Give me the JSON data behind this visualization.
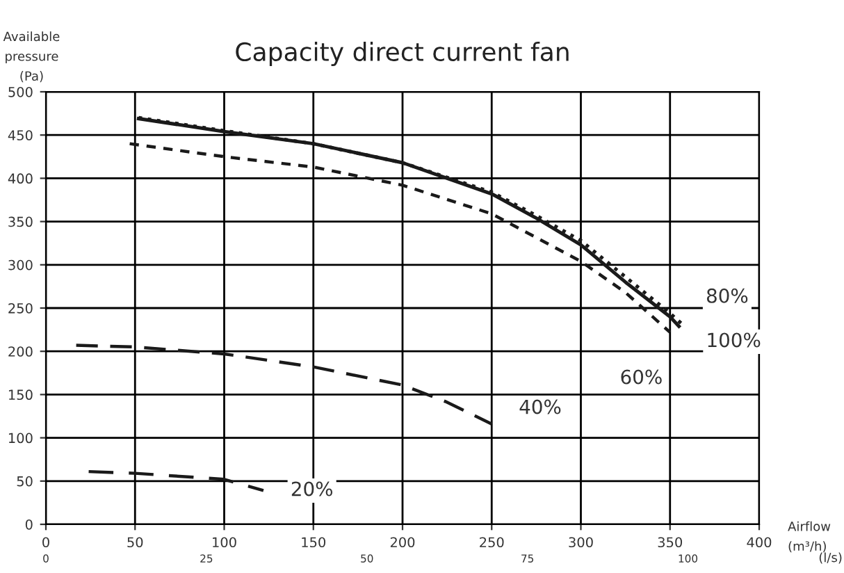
{
  "chart_data": {
    "type": "line",
    "title": "Capacity direct current fan",
    "xlabel": "Airflow\n(m³/h)",
    "x2label": "(l/s)",
    "ylabel": "Available\npressure\n(Pa)",
    "xlim": [
      0,
      400
    ],
    "xticks": [
      0,
      50,
      100,
      150,
      200,
      250,
      300,
      350,
      400
    ],
    "ylim": [
      0,
      500
    ],
    "yticks": [
      0,
      50,
      100,
      150,
      200,
      250,
      300,
      350,
      400,
      450,
      500
    ],
    "x2lim": [
      0,
      111.1
    ],
    "x2ticks": [
      0,
      25,
      50,
      75,
      100
    ],
    "grid": true,
    "legend": false,
    "marker": "none",
    "series": [
      {
        "name": "100%",
        "color": "#1a1a1a",
        "line_style": "solid",
        "x": [
          52,
          100,
          150,
          200,
          250,
          275,
          300,
          325,
          350,
          355
        ],
        "values": [
          469,
          454,
          440,
          418,
          382,
          354,
          323,
          280,
          240,
          229
        ]
      },
      {
        "name": "80%",
        "color": "#1a1a1a",
        "line_style": "dotted",
        "x": [
          52,
          100,
          150,
          200,
          250,
          275,
          300,
          325,
          350,
          357
        ],
        "values": [
          470,
          455,
          440,
          418,
          384,
          357,
          328,
          286,
          244,
          231
        ]
      },
      {
        "name": "60%",
        "color": "#1a1a1a",
        "line_style": "dashed",
        "x": [
          47,
          100,
          150,
          200,
          250,
          300,
          325,
          350
        ],
        "values": [
          440,
          425,
          413,
          392,
          359,
          304,
          268,
          222
        ]
      },
      {
        "name": "40%",
        "color": "#1a1a1a",
        "line_style": "dashed",
        "x": [
          17,
          50,
          100,
          150,
          200,
          224,
          250
        ],
        "values": [
          207,
          205,
          197,
          182,
          161,
          142,
          116
        ]
      },
      {
        "name": "20%",
        "color": "#1a1a1a",
        "line_style": "dashed",
        "x": [
          24,
          50,
          100,
          122
        ],
        "values": [
          61,
          59,
          52,
          39
        ]
      }
    ]
  }
}
